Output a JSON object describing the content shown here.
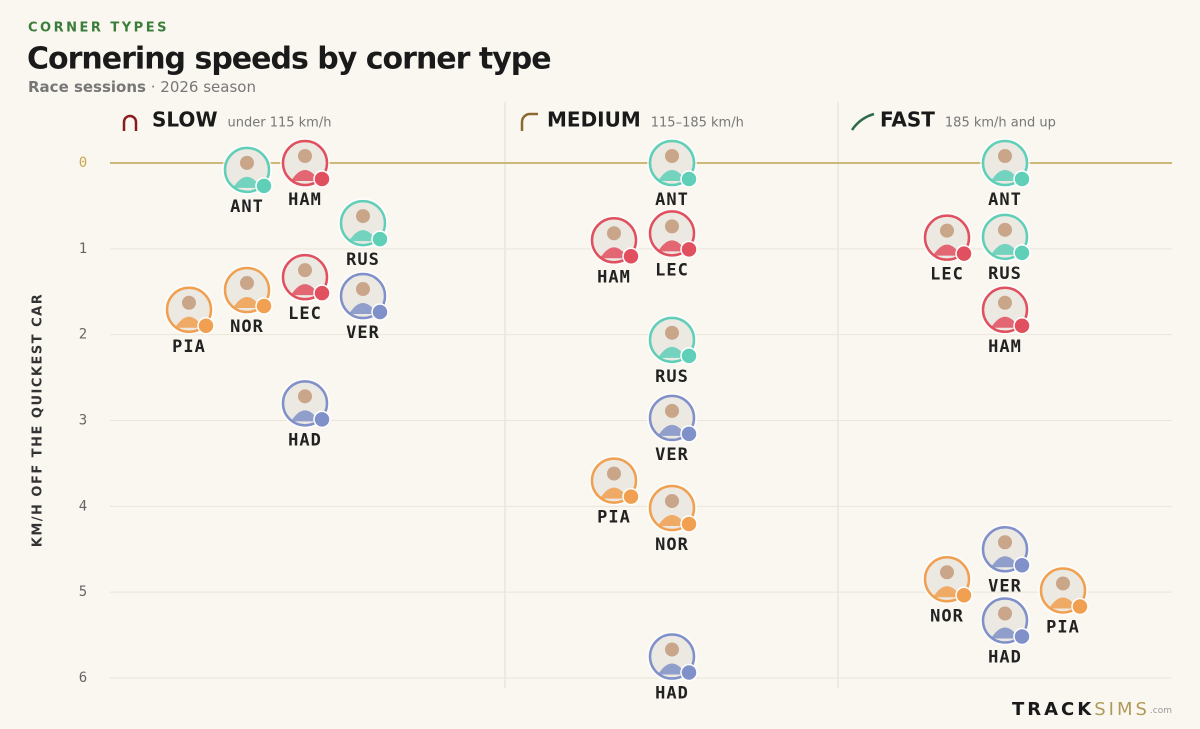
{
  "chart_data": {
    "type": "beeswarm",
    "kicker": "CORNER TYPES",
    "title": "Cornering speeds by corner type",
    "subtitle_bold": "Race sessions",
    "subtitle": "· 2026 season",
    "y_label": "KM/H OFF THE QUICKEST CAR",
    "ylim": [
      0,
      6
    ],
    "yticks": [
      0,
      1,
      2,
      3,
      4,
      5,
      6
    ],
    "y_inverted": true,
    "grid": true,
    "panels": [
      {
        "name": "SLOW",
        "range": "under 115 km/h",
        "categories": [
          "HAM",
          "ANT",
          "RUS",
          "LEC",
          "NOR",
          "VER",
          "PIA",
          "HAD"
        ],
        "values": [
          0,
          0.08,
          0.7,
          1.33,
          1.48,
          1.55,
          1.71,
          2.8
        ],
        "colors": [
          "#e0505e",
          "#5fcfb8",
          "#5fcfb8",
          "#e0505e",
          "#f0a050",
          "#8090c8",
          "#f0a050",
          "#8090c8"
        ]
      },
      {
        "name": "MEDIUM",
        "range": "115–185 km/h",
        "categories": [
          "ANT",
          "LEC",
          "HAM",
          "RUS",
          "VER",
          "PIA",
          "NOR",
          "HAD"
        ],
        "values": [
          0,
          0.82,
          0.9,
          2.06,
          2.97,
          3.7,
          4.02,
          5.75
        ],
        "colors": [
          "#5fcfb8",
          "#e0505e",
          "#e0505e",
          "#5fcfb8",
          "#8090c8",
          "#f0a050",
          "#f0a050",
          "#8090c8"
        ]
      },
      {
        "name": "FAST",
        "range": "185 km/h and up",
        "categories": [
          "ANT",
          "RUS",
          "LEC",
          "HAM",
          "VER",
          "NOR",
          "PIA",
          "HAD"
        ],
        "values": [
          0,
          0.86,
          0.87,
          1.71,
          4.5,
          4.85,
          4.98,
          5.33
        ],
        "colors": [
          "#5fcfb8",
          "#5fcfb8",
          "#e0505e",
          "#e0505e",
          "#8090c8",
          "#f0a050",
          "#f0a050",
          "#8090c8"
        ]
      }
    ],
    "brand": "TRACK",
    "brand_accent": "SIMS",
    "brand_suffix": ".com"
  }
}
